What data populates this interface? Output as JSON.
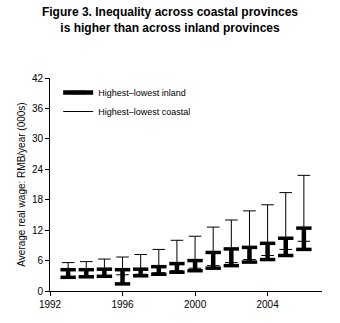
{
  "chart_data": {
    "type": "range",
    "title": "Figure 3. Inequality across coastal provinces\nis higher than across inland provinces",
    "y_label": "Average real wage: RMB/year (000s)",
    "x": [
      1993,
      1994,
      1995,
      1996,
      1997,
      1998,
      1999,
      2000,
      2001,
      2002,
      2003,
      2004,
      2005,
      2006
    ],
    "series": [
      {
        "name": "Highest–lowest coastal",
        "color": "#000000",
        "line_style": "thin",
        "marker": "cap",
        "low": [
          2.8,
          2.9,
          3.0,
          3.2,
          3.3,
          3.6,
          4.0,
          4.5,
          5.0,
          5.6,
          6.2,
          7.0,
          8.2,
          9.8
        ],
        "high": [
          5.6,
          5.8,
          6.3,
          6.7,
          7.2,
          8.2,
          10.0,
          10.8,
          12.6,
          14.0,
          15.8,
          17.0,
          19.4,
          22.8
        ]
      },
      {
        "name": "Highest–lowest inland",
        "color": "#000000",
        "line_style": "thick",
        "marker": "cap",
        "low": [
          2.7,
          2.8,
          2.9,
          1.4,
          3.0,
          3.3,
          3.7,
          4.0,
          4.5,
          5.0,
          5.7,
          6.2,
          7.0,
          8.2
        ],
        "high": [
          4.2,
          4.2,
          4.3,
          4.2,
          4.3,
          4.8,
          5.4,
          6.0,
          7.6,
          8.3,
          8.6,
          9.4,
          10.4,
          12.4
        ]
      }
    ],
    "xlim": [
      1992,
      2007
    ],
    "xticks": [
      1992,
      1996,
      2000,
      2004
    ],
    "ylim": [
      0,
      42
    ],
    "yticks": [
      0,
      6,
      12,
      18,
      24,
      30,
      36,
      42
    ],
    "grid": false,
    "legend": "top left"
  }
}
